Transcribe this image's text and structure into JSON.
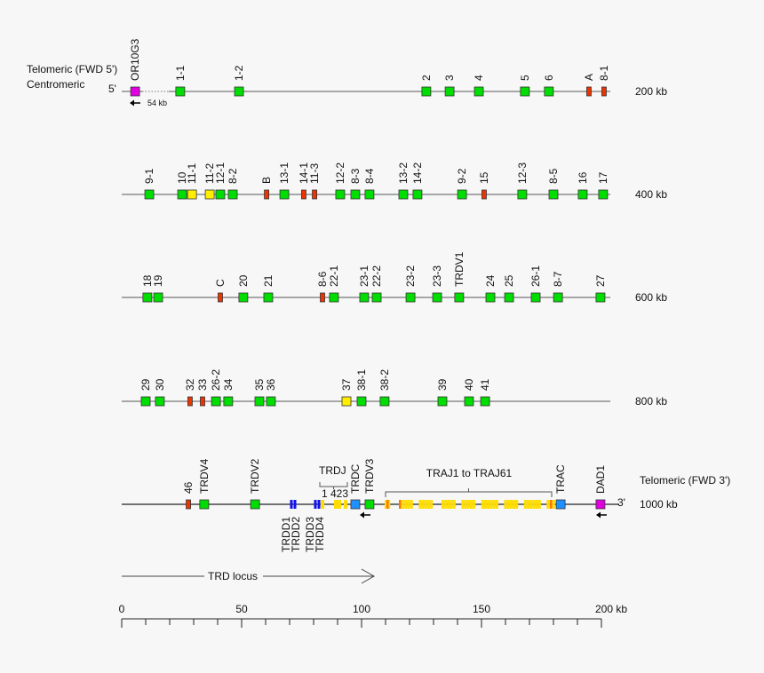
{
  "header": {
    "telomeric_5": "Telomeric (FWD 5')",
    "centromeric": "Centromeric",
    "five_prime": "5'",
    "offset_note": "54 kb"
  },
  "footer": {
    "telomeric_3": "Telomeric (FWD 3')",
    "three_prime": "3'"
  },
  "colors": {
    "V": "#00dd00",
    "pseudo": "#ee3300",
    "orf": "#ffee00",
    "C": "#1e90ff",
    "D": "#1010ee",
    "other": "#e000e0",
    "J": "#ffdd00"
  },
  "rows": [
    {
      "scale_label": "200 kb",
      "genes": [
        {
          "label": "OR10G3",
          "kb": 5.6,
          "type": "other"
        },
        {
          "label": "1-1",
          "kb": 24.4,
          "type": "V"
        },
        {
          "label": "1-2",
          "kb": 48.9,
          "type": "V"
        },
        {
          "label": "2",
          "kb": 127,
          "type": "V"
        },
        {
          "label": "3",
          "kb": 136.7,
          "type": "V"
        },
        {
          "label": "4",
          "kb": 148.9,
          "type": "V"
        },
        {
          "label": "5",
          "kb": 168.1,
          "type": "V"
        },
        {
          "label": "6",
          "kb": 178.1,
          "type": "V"
        },
        {
          "label": "A",
          "kb": 194.8,
          "type": "pseudo"
        },
        {
          "label": "8-1",
          "kb": 201.1,
          "type": "pseudo"
        }
      ]
    },
    {
      "scale_label": "400 kb",
      "genes": [
        {
          "label": "9-1",
          "kb": 11.5,
          "type": "V"
        },
        {
          "label": "10",
          "kb": 25.2,
          "type": "V"
        },
        {
          "label": "11-1",
          "kb": 29.3,
          "type": "orf"
        },
        {
          "label": "11-2",
          "kb": 36.7,
          "type": "orf"
        },
        {
          "label": "12-1",
          "kb": 41.1,
          "type": "V"
        },
        {
          "label": "8-2",
          "kb": 46.3,
          "type": "V"
        },
        {
          "label": "B",
          "kb": 60.4,
          "type": "pseudo"
        },
        {
          "label": "13-1",
          "kb": 67.8,
          "type": "V"
        },
        {
          "label": "14-1",
          "kb": 75.9,
          "type": "pseudo"
        },
        {
          "label": "11-3",
          "kb": 80.4,
          "type": "pseudo"
        },
        {
          "label": "12-2",
          "kb": 91.1,
          "type": "V"
        },
        {
          "label": "8-3",
          "kb": 97.4,
          "type": "V"
        },
        {
          "label": "8-4",
          "kb": 103.3,
          "type": "V"
        },
        {
          "label": "13-2",
          "kb": 117.4,
          "type": "V"
        },
        {
          "label": "14-2",
          "kb": 123.3,
          "type": "V"
        },
        {
          "label": "9-2",
          "kb": 141.9,
          "type": "V"
        },
        {
          "label": "15",
          "kb": 151.1,
          "type": "pseudo"
        },
        {
          "label": "12-3",
          "kb": 167,
          "type": "V"
        },
        {
          "label": "8-5",
          "kb": 180,
          "type": "V"
        },
        {
          "label": "16",
          "kb": 192.2,
          "type": "V"
        },
        {
          "label": "17",
          "kb": 200.7,
          "type": "V"
        }
      ]
    },
    {
      "scale_label": "600 kb",
      "genes": [
        {
          "label": "18",
          "kb": 10.7,
          "type": "V"
        },
        {
          "label": "19",
          "kb": 15.2,
          "type": "V"
        },
        {
          "label": "C",
          "kb": 41.1,
          "type": "pseudo"
        },
        {
          "label": "20",
          "kb": 50.7,
          "type": "V"
        },
        {
          "label": "21",
          "kb": 61.1,
          "type": "V"
        },
        {
          "label": "8-6",
          "kb": 83.7,
          "type": "pseudo"
        },
        {
          "label": "22-1",
          "kb": 88.5,
          "type": "V"
        },
        {
          "label": "23-1",
          "kb": 101.1,
          "type": "V"
        },
        {
          "label": "22-2",
          "kb": 106.3,
          "type": "V"
        },
        {
          "label": "23-2",
          "kb": 120.4,
          "type": "V"
        },
        {
          "label": "23-3",
          "kb": 131.5,
          "type": "V"
        },
        {
          "label": "TRDV1",
          "kb": 140.7,
          "type": "V"
        },
        {
          "label": "24",
          "kb": 153.7,
          "type": "V"
        },
        {
          "label": "25",
          "kb": 161.5,
          "type": "V"
        },
        {
          "label": "26-1",
          "kb": 172.6,
          "type": "V"
        },
        {
          "label": "8-7",
          "kb": 181.9,
          "type": "V"
        },
        {
          "label": "27",
          "kb": 199.6,
          "type": "V"
        }
      ]
    },
    {
      "scale_label": "800 kb",
      "genes": [
        {
          "label": "29",
          "kb": 10,
          "type": "V"
        },
        {
          "label": "30",
          "kb": 15.9,
          "type": "V"
        },
        {
          "label": "32",
          "kb": 28.5,
          "type": "pseudo"
        },
        {
          "label": "33",
          "kb": 33.7,
          "type": "pseudo"
        },
        {
          "label": "26-2",
          "kb": 39.3,
          "type": "V"
        },
        {
          "label": "34",
          "kb": 44.4,
          "type": "V"
        },
        {
          "label": "35",
          "kb": 57.4,
          "type": "V"
        },
        {
          "label": "36",
          "kb": 62.2,
          "type": "V"
        },
        {
          "label": "37",
          "kb": 93.7,
          "type": "orf"
        },
        {
          "label": "38-1",
          "kb": 100,
          "type": "V"
        },
        {
          "label": "38-2",
          "kb": 109.6,
          "type": "V"
        },
        {
          "label": "39",
          "kb": 133.7,
          "type": "V"
        },
        {
          "label": "40",
          "kb": 144.8,
          "type": "V"
        },
        {
          "label": "41",
          "kb": 151.5,
          "type": "V"
        }
      ]
    },
    {
      "scale_label": "1000 kb",
      "genes": [
        {
          "label": "46",
          "kb": 27.8,
          "type": "pseudo"
        },
        {
          "label": "TRDV4",
          "kb": 34.4,
          "type": "V"
        },
        {
          "label": "TRDV2",
          "kb": 55.6,
          "type": "V"
        },
        {
          "label": "TRDC",
          "kb": 97.4,
          "type": "C"
        },
        {
          "label": "TRDV3",
          "kb": 103.3,
          "type": "V"
        },
        {
          "label": "TRAC",
          "kb": 183,
          "type": "C"
        },
        {
          "label": "DAD1",
          "kb": 199.6,
          "type": "other"
        }
      ]
    }
  ],
  "trdd": {
    "labels_a": [
      "TRDD1",
      "TRDD2"
    ],
    "labels_b": [
      "TRDD3",
      "TRDD4"
    ]
  },
  "trdj": {
    "title": "TRDJ",
    "order": "1 423"
  },
  "traj": {
    "label": "TRAJ1 to TRAJ61"
  },
  "locus": {
    "label": "TRD locus"
  },
  "axis": {
    "ticks": [
      "0",
      "50",
      "100",
      "150"
    ],
    "end_label": "200 kb",
    "min": 0,
    "max": 200
  }
}
